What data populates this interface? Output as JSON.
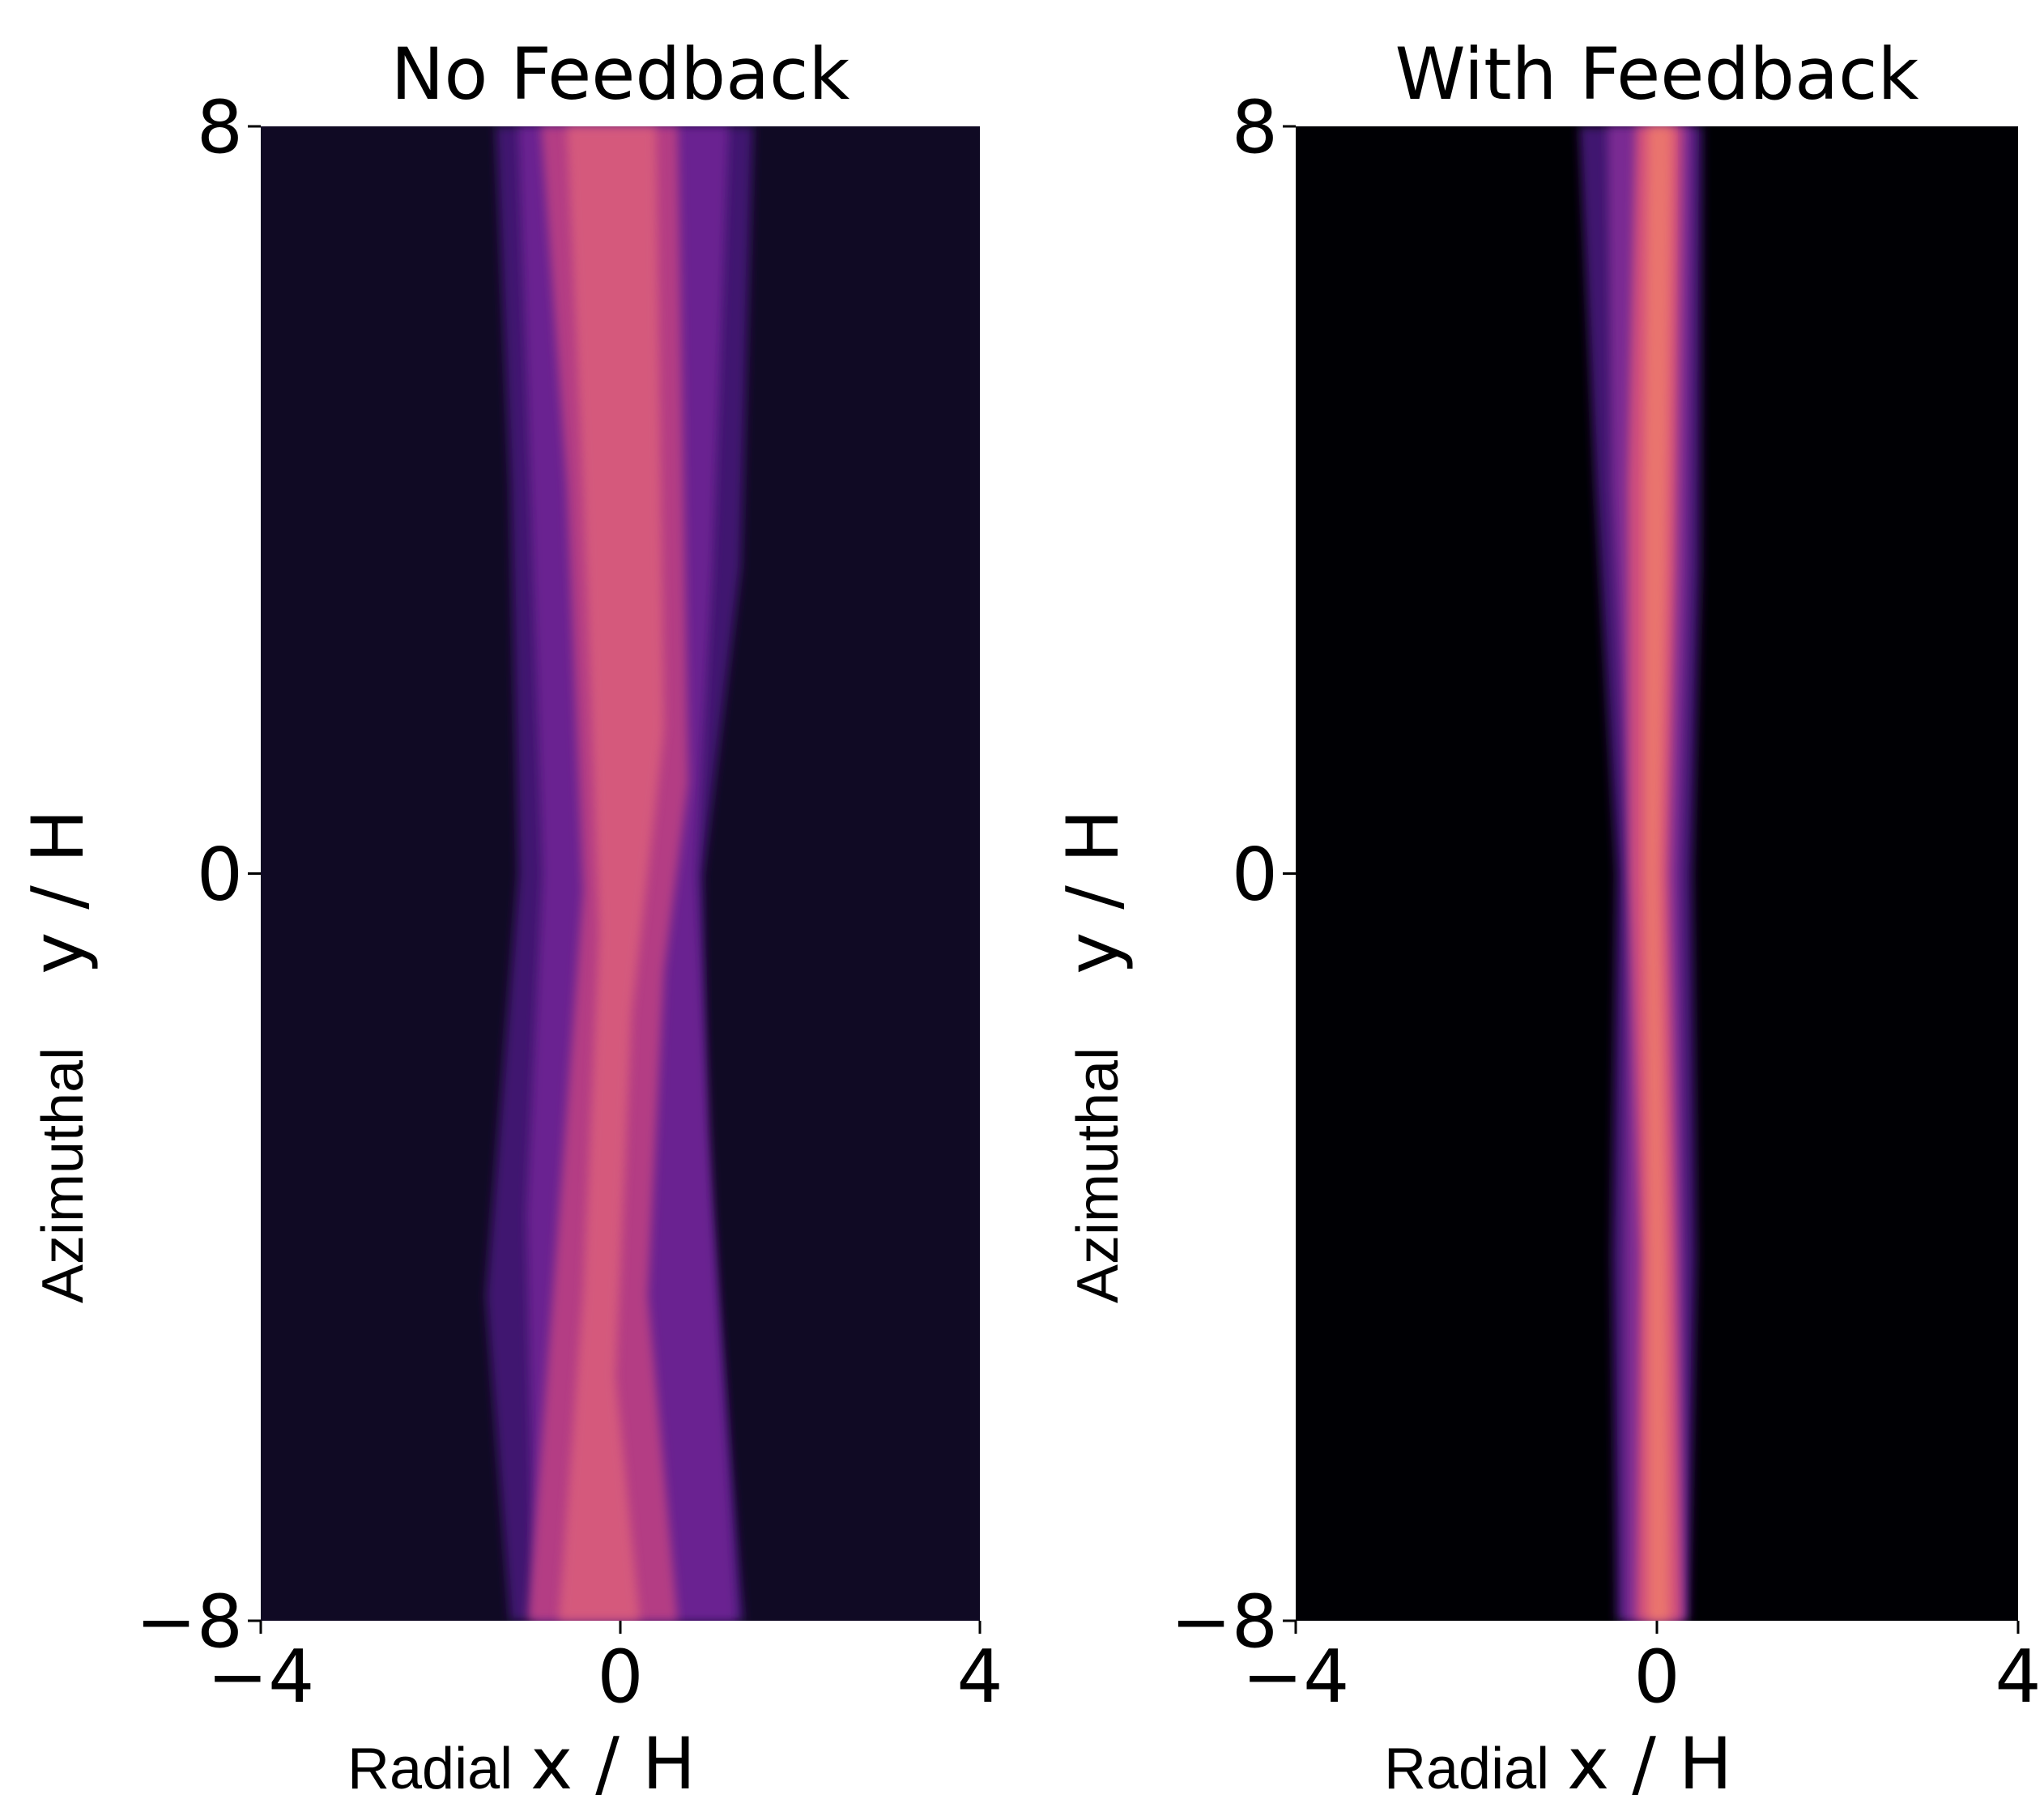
{
  "chart_data": [
    {
      "type": "heatmap",
      "title": "No Feedback",
      "background": "#100a24",
      "xlabel": [
        "Radial",
        "x / H"
      ],
      "ylabel": [
        "Azimuthal",
        "y / H"
      ],
      "xlim": [
        -4,
        4
      ],
      "ylim": [
        -8,
        8
      ],
      "xticks": [
        {
          "value": -4,
          "label": "−4"
        },
        0,
        4
      ],
      "yticks": [
        {
          "value": -8,
          "label": "−8"
        },
        0,
        8
      ]
    },
    {
      "type": "heatmap",
      "title": "With Feedback",
      "background": "#000004",
      "xlabel": [
        "Radial",
        "x / H"
      ],
      "ylabel": [
        "Azimuthal",
        "y / H"
      ],
      "xlim": [
        -4,
        4
      ],
      "ylim": [
        -8,
        8
      ],
      "xticks": [
        {
          "value": -4,
          "label": "−4"
        },
        0,
        4
      ],
      "yticks": [
        {
          "value": -8,
          "label": "−8"
        },
        0,
        8
      ]
    }
  ]
}
